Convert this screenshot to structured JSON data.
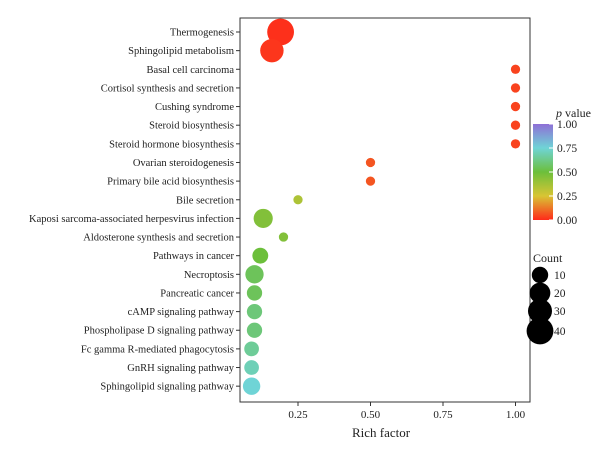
{
  "chart_data": {
    "type": "scatter",
    "title": "",
    "xlabel": "Rich factor",
    "ylabel": "",
    "xlim": [
      0.05,
      1.05
    ],
    "xticks": [
      {
        "value": 0.25,
        "label": "0.25"
      },
      {
        "value": 0.5,
        "label": "0.50"
      },
      {
        "value": 0.75,
        "label": "0.75"
      },
      {
        "value": 1.0,
        "label": "1.00"
      }
    ],
    "grid": false,
    "points": [
      {
        "pathway": "Thermogenesis",
        "rich_factor": 0.19,
        "p_value": 0.01,
        "count": 40
      },
      {
        "pathway": "Sphingolipid metabolism",
        "rich_factor": 0.16,
        "p_value": 0.02,
        "count": 28
      },
      {
        "pathway": "Basal cell carcinoma",
        "rich_factor": 1.0,
        "p_value": 0.04,
        "count": 1
      },
      {
        "pathway": "Cortisol synthesis and secretion",
        "rich_factor": 1.0,
        "p_value": 0.04,
        "count": 1
      },
      {
        "pathway": "Cushing syndrome",
        "rich_factor": 1.0,
        "p_value": 0.04,
        "count": 1
      },
      {
        "pathway": "Steroid biosynthesis",
        "rich_factor": 1.0,
        "p_value": 0.04,
        "count": 1
      },
      {
        "pathway": "Steroid hormone biosynthesis",
        "rich_factor": 1.0,
        "p_value": 0.04,
        "count": 1
      },
      {
        "pathway": "Ovarian steroidogenesis",
        "rich_factor": 0.5,
        "p_value": 0.07,
        "count": 1
      },
      {
        "pathway": "Primary bile acid biosynthesis",
        "rich_factor": 0.5,
        "p_value": 0.07,
        "count": 1
      },
      {
        "pathway": "Bile secretion",
        "rich_factor": 0.25,
        "p_value": 0.35,
        "count": 1
      },
      {
        "pathway": "Kaposi sarcoma-associated herpesvirus infection",
        "rich_factor": 0.13,
        "p_value": 0.45,
        "count": 16
      },
      {
        "pathway": "Aldosterone synthesis and secretion",
        "rich_factor": 0.2,
        "p_value": 0.45,
        "count": 1
      },
      {
        "pathway": "Pathways in cancer",
        "rich_factor": 0.12,
        "p_value": 0.5,
        "count": 9
      },
      {
        "pathway": "Necroptosis",
        "rich_factor": 0.1,
        "p_value": 0.55,
        "count": 14
      },
      {
        "pathway": "Pancreatic cancer",
        "rich_factor": 0.1,
        "p_value": 0.55,
        "count": 8
      },
      {
        "pathway": "cAMP signaling pathway",
        "rich_factor": 0.1,
        "p_value": 0.6,
        "count": 8
      },
      {
        "pathway": "Phospholipase D signaling pathway",
        "rich_factor": 0.1,
        "p_value": 0.6,
        "count": 8
      },
      {
        "pathway": "Fc gamma R-mediated phagocytosis",
        "rich_factor": 0.09,
        "p_value": 0.65,
        "count": 7
      },
      {
        "pathway": "GnRH signaling pathway",
        "rich_factor": 0.09,
        "p_value": 0.7,
        "count": 7
      },
      {
        "pathway": "Sphingolipid signaling pathway",
        "rich_factor": 0.09,
        "p_value": 0.75,
        "count": 12
      }
    ],
    "color_scale": {
      "title_italic": "p",
      "title_rest": " value",
      "range": [
        0,
        1
      ],
      "stops": [
        "#ff2a1a",
        "#d8c534",
        "#6cbf3b",
        "#6fd4d6",
        "#8e6fd6"
      ],
      "ticks": [
        {
          "value": 1.0,
          "label": "1.00"
        },
        {
          "value": 0.75,
          "label": "0.75"
        },
        {
          "value": 0.5,
          "label": "0.50"
        },
        {
          "value": 0.25,
          "label": "0.25"
        },
        {
          "value": 0.0,
          "label": "0.00"
        }
      ]
    },
    "size_legend": {
      "title": "Count",
      "entries": [
        {
          "value": 10,
          "label": "10"
        },
        {
          "value": 20,
          "label": "20"
        },
        {
          "value": 30,
          "label": "30"
        },
        {
          "value": 40,
          "label": "40"
        }
      ]
    },
    "legend_position": "right"
  }
}
